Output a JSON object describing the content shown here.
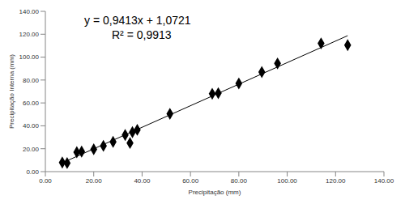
{
  "chart_data": {
    "type": "scatter",
    "x_label": "Precipitação (mm)",
    "y_label": "Precipitação Interna (mm)",
    "x": [
      7,
      9,
      13,
      15,
      20,
      24,
      28,
      33,
      35,
      36,
      38,
      51.5,
      69,
      71.5,
      80,
      89.5,
      96,
      114,
      125
    ],
    "values": [
      8,
      7.5,
      17,
      17.5,
      19.5,
      22.5,
      26,
      32,
      25,
      34.5,
      36.5,
      50.5,
      68,
      68.5,
      77,
      87,
      94.5,
      112,
      110.5
    ],
    "color": "#000000",
    "marker": "diamond",
    "xlim": [
      0,
      140
    ],
    "xticks": [
      {
        "value": 0,
        "label": "0.00"
      },
      {
        "value": 20,
        "label": "20.00"
      },
      {
        "value": 40,
        "label": "40.00"
      },
      {
        "value": 60,
        "label": "60.00"
      },
      {
        "value": 80,
        "label": "80.00"
      },
      {
        "value": 100,
        "label": "100.00"
      },
      {
        "value": 120,
        "label": "120.00"
      },
      {
        "value": 140,
        "label": "140.00"
      }
    ],
    "ylim": [
      0,
      140
    ],
    "yticks": [
      {
        "value": 0,
        "label": "0.00"
      },
      {
        "value": 20,
        "label": "20.00"
      },
      {
        "value": 40,
        "label": "40.00"
      },
      {
        "value": 60,
        "label": "60.00"
      },
      {
        "value": 80,
        "label": "80.00"
      },
      {
        "value": 100,
        "label": "100.00"
      },
      {
        "value": 120,
        "label": "120.00"
      },
      {
        "value": 140,
        "label": "140.00"
      }
    ],
    "grid": false,
    "trendline": {
      "slope": 0.9413,
      "intercept": 1.0721,
      "equation": "y = 0,9413x + 1,0721",
      "r2": 0.9913,
      "r2_label": "R² = 0,9913"
    }
  }
}
